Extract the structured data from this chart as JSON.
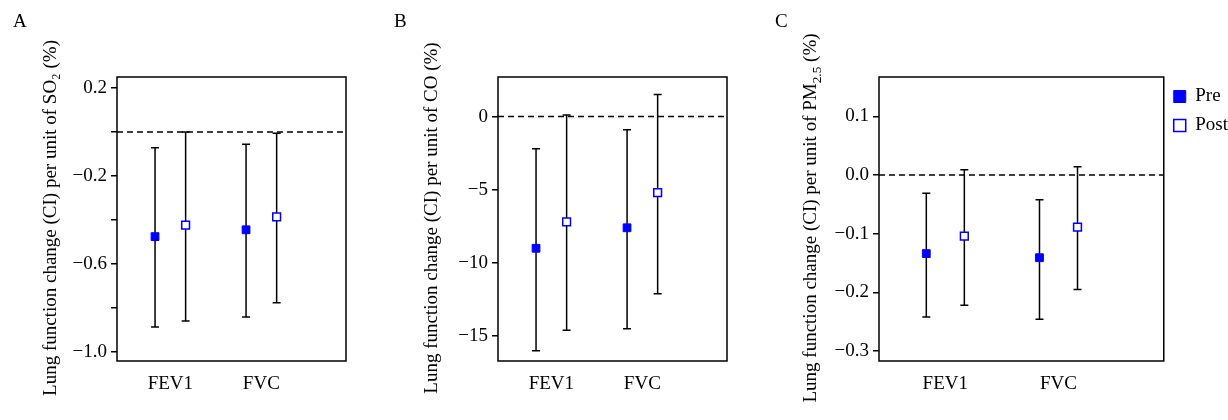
{
  "chart_data": [
    {
      "type": "scatter",
      "title": "A",
      "ylabel": "Lung function change (CI) per unit of SO₂ (%)",
      "categories": [
        "FEV1",
        "FVC"
      ],
      "ylim": [
        -1.04,
        0.25
      ],
      "yticks": [
        {
          "value": 0.2,
          "label": "0.2"
        },
        {
          "value": 0,
          "label": null
        },
        {
          "value": -0.2,
          "label": "−0.2"
        },
        {
          "value": -0.4,
          "label": null
        },
        {
          "value": -0.6,
          "label": "−0.6"
        },
        {
          "value": -0.8,
          "label": null
        },
        {
          "value": -1.0,
          "label": "−1.0"
        }
      ],
      "grid": false,
      "marker": "square",
      "ref_lines": [
        {
          "axis": "y",
          "value": 0,
          "line_style": "dashed"
        }
      ],
      "series": [
        {
          "color": "#0000ff",
          "values": [
            -0.475,
            -0.444
          ],
          "errors": [
            [
              -0.886,
              -0.071
            ],
            [
              -0.84,
              -0.056
            ]
          ]
        },
        {
          "color": "#0000ff",
          "values": [
            -0.423,
            -0.385
          ],
          "errors": [
            [
              -0.858,
              0.0
            ],
            [
              -0.775,
              -0.006
            ]
          ]
        }
      ]
    },
    {
      "type": "scatter",
      "title": "B",
      "ylabel": "Lung function change (CI) per unit of CO (%)",
      "categories": [
        "FEV1",
        "FVC"
      ],
      "ylim": [
        -16.7,
        2.7
      ],
      "yticks": [
        0,
        {
          "value": -5,
          "label": "−5"
        },
        {
          "value": -10,
          "label": "−10"
        },
        {
          "value": -15,
          "label": "−15"
        }
      ],
      "grid": false,
      "marker": "square",
      "ref_lines": [
        {
          "axis": "y",
          "value": 0,
          "line_style": "dashed"
        }
      ],
      "series": [
        {
          "color": "#0000ff",
          "values": [
            -9.0,
            -7.6
          ],
          "errors": [
            [
              -16.0,
              -2.2
            ],
            [
              -14.5,
              -0.9
            ]
          ]
        },
        {
          "color": "#0000ff",
          "values": [
            -7.2,
            -5.2
          ],
          "errors": [
            [
              -14.6,
              0.1
            ],
            [
              -12.1,
              1.5
            ]
          ]
        }
      ]
    },
    {
      "type": "scatter",
      "title": "C",
      "ylabel": "Lung function change (CI) per unit of PM$_{2.5}$ (%)",
      "categories": [
        "FEV1",
        "FVC"
      ],
      "ylim": [
        -0.317,
        0.167
      ],
      "yticks": [
        0.1,
        {
          "value": 0,
          "label": "0.0"
        },
        {
          "value": -0.1,
          "label": "−0.1"
        },
        {
          "value": -0.2,
          "label": "−0.2"
        },
        {
          "value": -0.3,
          "label": "−0.3"
        }
      ],
      "grid": false,
      "marker": "square",
      "legend": "right",
      "ref_lines": [
        {
          "axis": "y",
          "value": 0,
          "line_style": "dashed"
        }
      ],
      "series": [
        {
          "name": "Pre",
          "color": "#0000ff",
          "values": [
            -0.134,
            -0.141
          ],
          "errors": [
            [
              -0.242,
              -0.031
            ],
            [
              -0.246,
              -0.042
            ]
          ]
        },
        {
          "name": "Post",
          "color": "#0000ff",
          "values": [
            -0.104,
            -0.089
          ],
          "errors": [
            [
              -0.222,
              0.009
            ],
            [
              -0.195,
              0.014
            ]
          ]
        }
      ]
    }
  ]
}
